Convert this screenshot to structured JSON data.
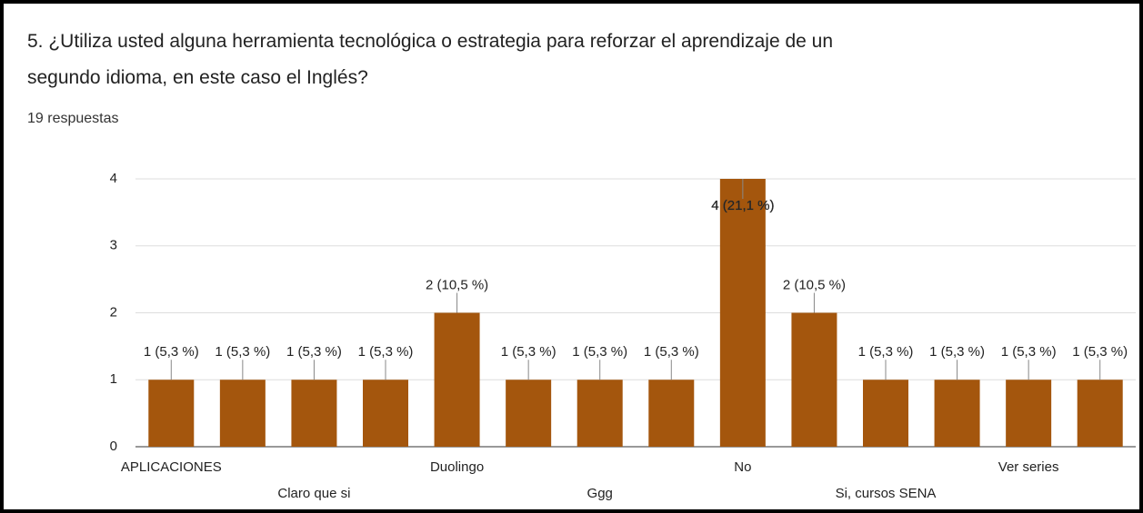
{
  "chart_data": {
    "type": "bar",
    "title": "5. ¿Utiliza usted alguna herramienta tecnológica o estrategia para reforzar el aprendizaje de un segundo idioma, en este caso el Inglés?",
    "subtitle": "19 respuestas",
    "categories": [
      "APLICACIONES",
      null,
      "Claro que si",
      null,
      "Duolingo",
      null,
      "Ggg",
      null,
      "No",
      null,
      "Si, cursos SENA",
      null,
      "Ver series",
      null
    ],
    "values": [
      1,
      1,
      1,
      1,
      2,
      1,
      1,
      1,
      4,
      2,
      1,
      1,
      1,
      1
    ],
    "value_labels": [
      "1 (5,3 %)",
      "1 (5,3 %)",
      "1 (5,3 %)",
      "1 (5,3 %)",
      "2 (10,5 %)",
      "1 (5,3 %)",
      "1 (5,3 %)",
      "1 (5,3 %)",
      "4 (21,1 %)",
      "2 (10,5 %)",
      "1 (5,3 %)",
      "1 (5,3 %)",
      "1 (5,3 %)",
      "1 (5,3 %)"
    ],
    "color": "#a4560d",
    "ylim": [
      0,
      4
    ],
    "yticks": [
      0,
      1,
      2,
      3,
      4
    ],
    "grid": true
  }
}
